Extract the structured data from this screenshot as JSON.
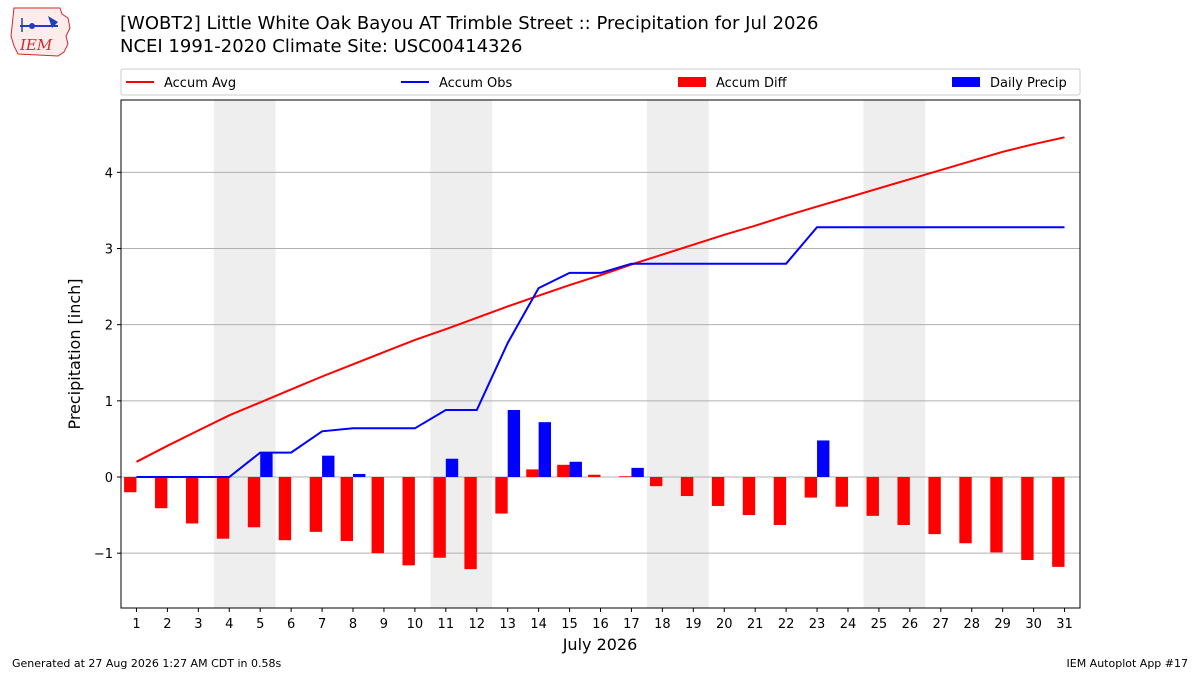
{
  "header": {
    "title_line1": "[WOBT2] Little White Oak Bayou  AT Trimble Street :: Precipitation for Jul 2026",
    "title_line2": "NCEI 1991-2020 Climate Site: USC00414326"
  },
  "logo": {
    "text": "IEM",
    "color": "#d62728"
  },
  "footer": {
    "generated": "Generated at 27 Aug 2026 1:27 AM CDT in 0.58s",
    "app": "IEM Autoplot App #17"
  },
  "chart_data": {
    "type": "bar",
    "xlabel": "July 2026",
    "ylabel": "Precipitation [inch]",
    "xlim": [
      0.5,
      31.5
    ],
    "ylim": [
      -1.72,
      4.95
    ],
    "yticks": [
      -1,
      0,
      1,
      2,
      3,
      4
    ],
    "ytick_labels": [
      "−1",
      "0",
      "1",
      "2",
      "3",
      "4"
    ],
    "grid": "horizontal",
    "legend_position": "top",
    "weekend_shading": [
      [
        3.5,
        5.5
      ],
      [
        10.5,
        12.5
      ],
      [
        17.5,
        19.5
      ],
      [
        24.5,
        26.5
      ]
    ],
    "days": [
      1,
      2,
      3,
      4,
      5,
      6,
      7,
      8,
      9,
      10,
      11,
      12,
      13,
      14,
      15,
      16,
      17,
      18,
      19,
      20,
      21,
      22,
      23,
      24,
      25,
      26,
      27,
      28,
      29,
      30,
      31
    ],
    "series": [
      {
        "name": "Accum Avg",
        "kind": "line",
        "color": "#ff0000",
        "values": [
          0.2,
          0.41,
          0.61,
          0.81,
          0.98,
          1.15,
          1.32,
          1.48,
          1.64,
          1.8,
          1.94,
          2.09,
          2.24,
          2.38,
          2.52,
          2.65,
          2.79,
          2.92,
          3.05,
          3.18,
          3.3,
          3.43,
          3.55,
          3.67,
          3.79,
          3.91,
          4.03,
          4.15,
          4.27,
          4.37,
          4.46
        ]
      },
      {
        "name": "Accum Obs",
        "kind": "line",
        "color": "#0000ff",
        "values": [
          0,
          0,
          0,
          0,
          0.32,
          0.32,
          0.6,
          0.64,
          0.64,
          0.64,
          0.88,
          0.88,
          1.76,
          2.48,
          2.68,
          2.68,
          2.8,
          2.8,
          2.8,
          2.8,
          2.8,
          2.8,
          3.28,
          3.28,
          3.28,
          3.28,
          3.28,
          3.28,
          3.28,
          3.28,
          3.28
        ]
      },
      {
        "name": "Accum Diff",
        "kind": "bar",
        "color": "#ff0000",
        "values": [
          -0.2,
          -0.41,
          -0.61,
          -0.81,
          -0.66,
          -0.83,
          -0.72,
          -0.84,
          -1.0,
          -1.16,
          -1.06,
          -1.21,
          -0.48,
          0.1,
          0.16,
          0.03,
          0.01,
          -0.12,
          -0.25,
          -0.38,
          -0.5,
          -0.63,
          -0.27,
          -0.39,
          -0.51,
          -0.63,
          -0.75,
          -0.87,
          -0.99,
          -1.09,
          -1.18
        ]
      },
      {
        "name": "Daily Precip",
        "kind": "bar",
        "color": "#0000ff",
        "values": [
          0,
          0,
          0,
          0,
          0.32,
          0,
          0.28,
          0.04,
          0,
          0,
          0.24,
          0,
          0.88,
          0.72,
          0.2,
          0,
          0.12,
          0,
          0,
          0,
          0,
          0,
          0.48,
          0,
          0,
          0,
          0,
          0,
          0,
          0,
          0
        ]
      }
    ]
  }
}
